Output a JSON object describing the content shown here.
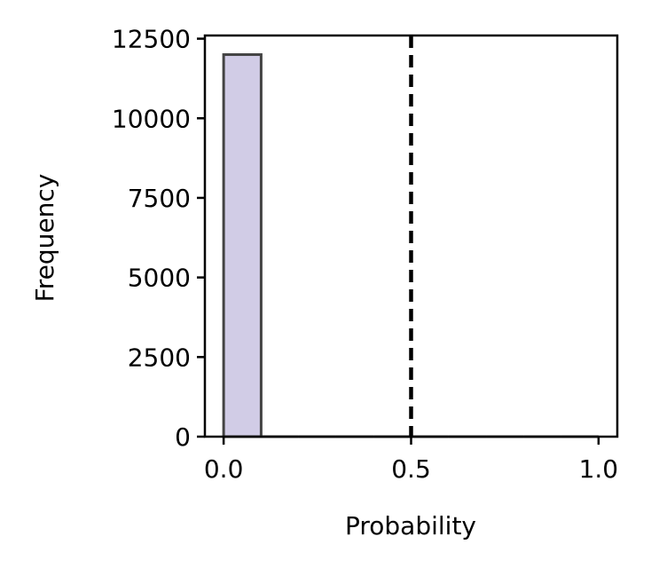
{
  "chart_data": {
    "type": "bar",
    "title": "",
    "xlabel": "Probability",
    "ylabel": "Frequency",
    "xlim": [
      -0.05,
      1.05
    ],
    "ylim": [
      0,
      12600
    ],
    "xticks": [
      0.0,
      0.5,
      1.0
    ],
    "xtick_labels": [
      "0.0",
      "0.5",
      "1.0"
    ],
    "yticks": [
      0,
      2500,
      5000,
      7500,
      10000,
      12500
    ],
    "ytick_labels": [
      "0",
      "2500",
      "5000",
      "7500",
      "10000",
      "12500"
    ],
    "bins": [
      {
        "x0": 0.0,
        "x1": 0.1,
        "count": 12000
      },
      {
        "x0": 0.1,
        "x1": 0.2,
        "count": 0
      },
      {
        "x0": 0.2,
        "x1": 0.3,
        "count": 0
      },
      {
        "x0": 0.3,
        "x1": 0.4,
        "count": 0
      },
      {
        "x0": 0.4,
        "x1": 0.5,
        "count": 0
      },
      {
        "x0": 0.5,
        "x1": 0.6,
        "count": 0
      },
      {
        "x0": 0.6,
        "x1": 0.7,
        "count": 0
      },
      {
        "x0": 0.7,
        "x1": 0.8,
        "count": 0
      },
      {
        "x0": 0.8,
        "x1": 0.9,
        "count": 0
      },
      {
        "x0": 0.9,
        "x1": 1.0,
        "count": 0
      }
    ],
    "threshold_line": {
      "x": 0.5,
      "style": "dashed",
      "color": "#000000"
    },
    "bar_fill": "#d1cce6",
    "bar_edge": "#444444",
    "grid": false,
    "legend": "none"
  }
}
